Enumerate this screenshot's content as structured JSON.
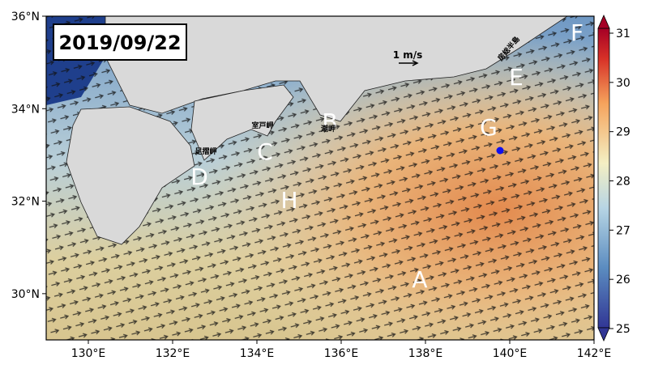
{
  "title": "2019/09/22",
  "map": {
    "lon_range": [
      129,
      142
    ],
    "lat_range": [
      29,
      36
    ],
    "lon_ticks": [
      {
        "value": 130,
        "label": "130°E"
      },
      {
        "value": 132,
        "label": "132°E"
      },
      {
        "value": 134,
        "label": "134°E"
      },
      {
        "value": 136,
        "label": "136°E"
      },
      {
        "value": 138,
        "label": "138°E"
      },
      {
        "value": 140,
        "label": "140°E"
      },
      {
        "value": 142,
        "label": "142°E"
      }
    ],
    "lat_ticks": [
      {
        "value": 30,
        "label": "30°N"
      },
      {
        "value": 32,
        "label": "32°N"
      },
      {
        "value": 34,
        "label": "34°N"
      },
      {
        "value": 36,
        "label": "36°N"
      }
    ],
    "letters": [
      "A",
      "B",
      "C",
      "D",
      "E",
      "F",
      "G",
      "H"
    ],
    "places": [
      "足摺岬",
      "室戸岬",
      "潮岬",
      "房総半島"
    ],
    "scale_label": "1 m/s"
  },
  "colorbar": {
    "range": [
      25,
      31
    ],
    "ticks": [
      25,
      26,
      27,
      28,
      29,
      30,
      31
    ]
  }
}
